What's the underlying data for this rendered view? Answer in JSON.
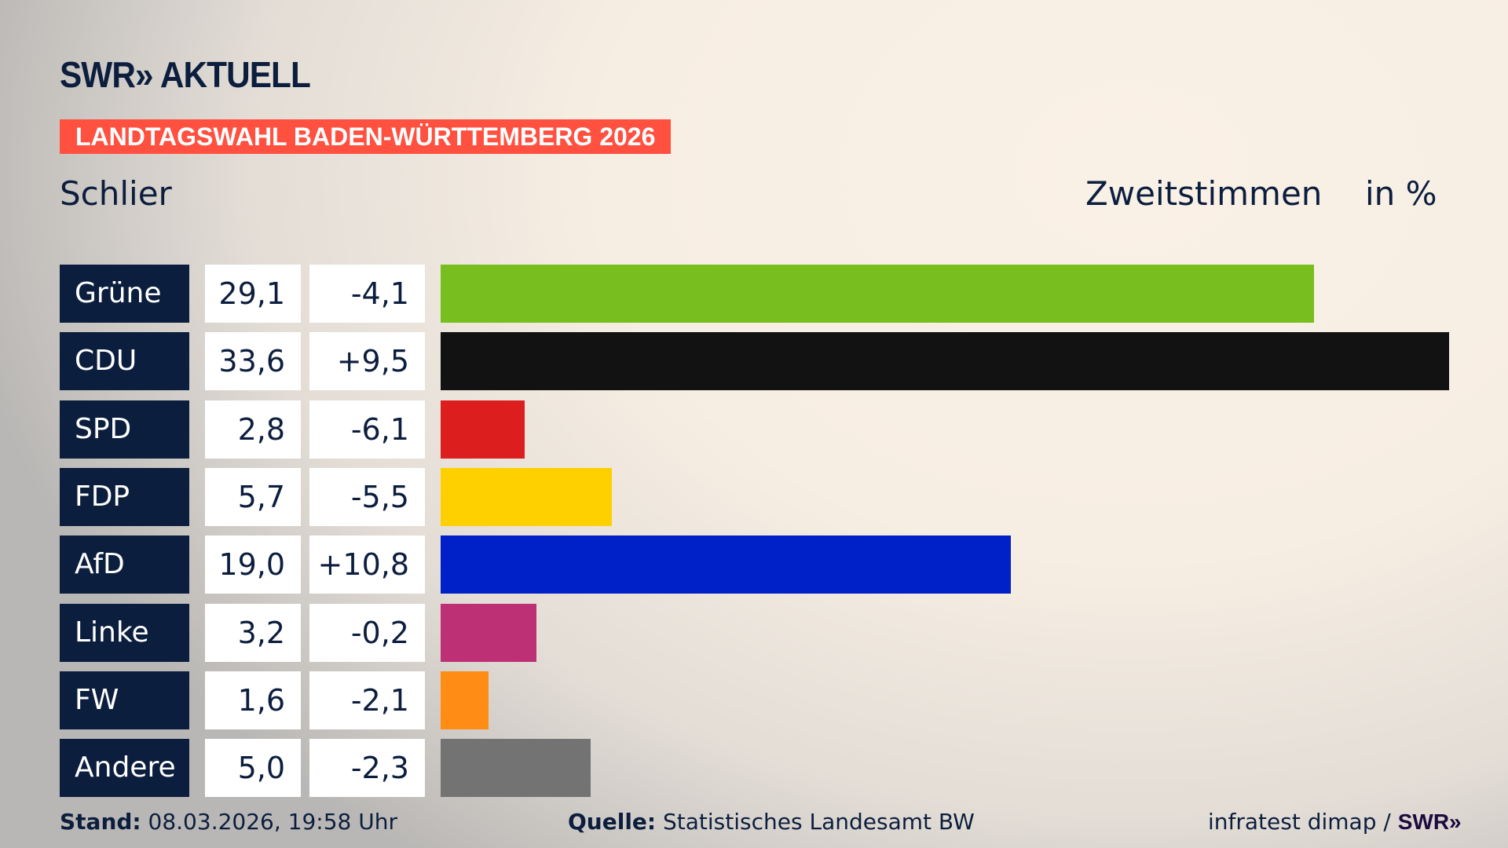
{
  "header": {
    "logo": "SWR» AKTUELL",
    "banner": "LANDTAGSWAHL BADEN-WÜRTTEMBERG 2026",
    "region": "Schlier",
    "vote_type": "Zweitstimmen",
    "unit": "in %"
  },
  "chart_data": {
    "type": "bar",
    "orientation": "horizontal",
    "categories": [
      "Grüne",
      "CDU",
      "SPD",
      "FDP",
      "AfD",
      "Linke",
      "FW",
      "Andere"
    ],
    "values": [
      29.1,
      33.6,
      2.8,
      5.7,
      19.0,
      3.2,
      1.6,
      5.0
    ],
    "value_labels": [
      "29,1",
      "33,6",
      "2,8",
      "5,7",
      "19,0",
      "3,2",
      "1,6",
      "5,0"
    ],
    "changes": [
      "-4,1",
      "+9,5",
      "-6,1",
      "-5,5",
      "+10,8",
      "-0,2",
      "-2,1",
      "-2,3"
    ],
    "colors": [
      "#78be1e",
      "#121212",
      "#dc1e1e",
      "#ffd000",
      "#0021c8",
      "#be3075",
      "#ff8c14",
      "#737373"
    ],
    "xlim": [
      0,
      33.6
    ],
    "grid": false
  },
  "footer": {
    "stand_label": "Stand:",
    "stand_value": "08.03.2026, 19:58 Uhr",
    "source_label": "Quelle:",
    "source_value": "Statistisches Landesamt BW",
    "credit": "infratest dimap /",
    "credit_logo": "SWR»"
  }
}
